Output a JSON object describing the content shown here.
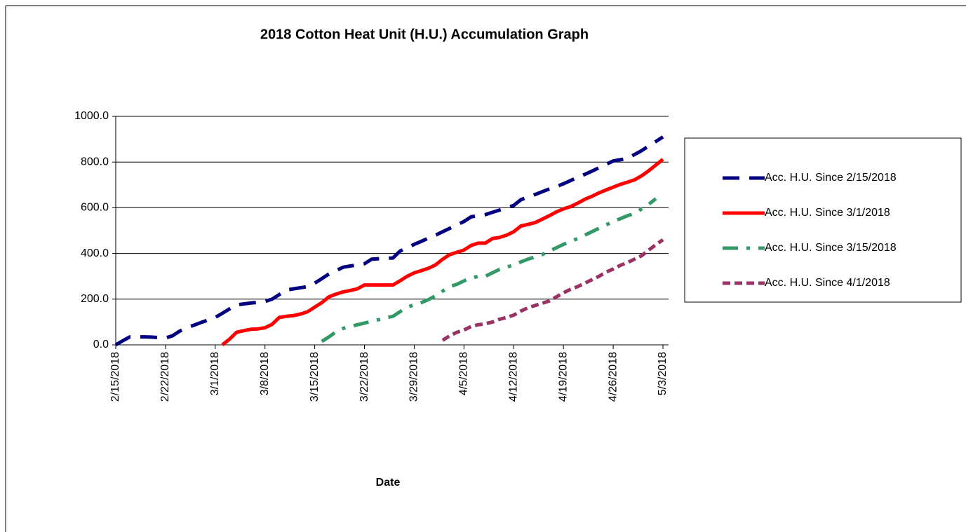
{
  "chart_data": {
    "type": "line",
    "title": "2018 Cotton Heat Unit (H.U.) Accumulation  Graph",
    "x_label": "Date",
    "categories": [
      "2/15/2018",
      null,
      null,
      null,
      null,
      null,
      null,
      "2/22/2018",
      null,
      null,
      null,
      null,
      null,
      null,
      "3/1/2018",
      null,
      null,
      null,
      null,
      null,
      null,
      "3/8/2018",
      null,
      null,
      null,
      null,
      null,
      null,
      "3/15/2018",
      null,
      null,
      null,
      null,
      null,
      null,
      "3/22/2018",
      null,
      null,
      null,
      null,
      null,
      null,
      "3/29/2018",
      null,
      null,
      null,
      null,
      null,
      null,
      "4/5/2018",
      null,
      null,
      null,
      null,
      null,
      null,
      "4/12/2018",
      null,
      null,
      null,
      null,
      null,
      null,
      "4/19/2018",
      null,
      null,
      null,
      null,
      null,
      null,
      "4/26/2018",
      null,
      null,
      null,
      null,
      null,
      null,
      "5/3/2018"
    ],
    "ylim": [
      0,
      1000
    ],
    "yticks": [
      {
        "value": 0,
        "label": "0.0"
      },
      {
        "value": 200,
        "label": "200.0"
      },
      {
        "value": 400,
        "label": "400.0"
      },
      {
        "value": 600,
        "label": "600.0"
      },
      {
        "value": 800,
        "label": "800.0"
      },
      {
        "value": 1000,
        "label": "1000.0"
      }
    ],
    "grid": true,
    "legend": "right",
    "series": [
      {
        "name": "Acc. H.U. Since 2/15/2018",
        "color": "#000080",
        "dash": "long-dash",
        "values": [
          0,
          18,
          35,
          35,
          35,
          34,
          32,
          30,
          40,
          60,
          75,
          86,
          98,
          109,
          120,
          138,
          157,
          175,
          179,
          183,
          186,
          190,
          200,
          220,
          240,
          245,
          250,
          255,
          270,
          290,
          310,
          325,
          340,
          345,
          350,
          355,
          375,
          377,
          379,
          380,
          410,
          425,
          440,
          453,
          467,
          480,
          495,
          510,
          525,
          540,
          560,
          565,
          570,
          580,
          590,
          600,
          610,
          635,
          647,
          658,
          670,
          682,
          693,
          705,
          719,
          733,
          746,
          760,
          775,
          790,
          805,
          810,
          815,
          833,
          850,
          870,
          890,
          910
        ]
      },
      {
        "name": "Acc. H.U. Since 3/1/2018",
        "color": "#ff0000",
        "dash": "solid",
        "values": [
          null,
          null,
          null,
          null,
          null,
          null,
          null,
          null,
          null,
          null,
          null,
          null,
          null,
          null,
          null,
          0,
          25,
          55,
          62,
          68,
          70,
          75,
          90,
          120,
          125,
          128,
          135,
          145,
          165,
          185,
          210,
          222,
          232,
          238,
          245,
          262,
          262,
          262,
          262,
          262,
          280,
          300,
          315,
          325,
          335,
          350,
          375,
          395,
          405,
          415,
          435,
          445,
          445,
          465,
          470,
          480,
          495,
          520,
          527,
          535,
          550,
          565,
          582,
          595,
          605,
          620,
          637,
          650,
          665,
          678,
          690,
          702,
          712,
          722,
          740,
          762,
          787,
          812
        ]
      },
      {
        "name": "Acc. H.U. Since 3/15/2018",
        "color": "#339966",
        "dash": "dash-dot",
        "values": [
          null,
          null,
          null,
          null,
          null,
          null,
          null,
          null,
          null,
          null,
          null,
          null,
          null,
          null,
          null,
          null,
          null,
          null,
          null,
          null,
          null,
          null,
          null,
          null,
          null,
          null,
          null,
          null,
          null,
          15,
          35,
          57,
          72,
          80,
          88,
          95,
          103,
          110,
          118,
          125,
          145,
          165,
          175,
          185,
          198,
          215,
          235,
          255,
          265,
          280,
          292,
          300,
          300,
          315,
          330,
          340,
          350,
          363,
          375,
          385,
          395,
          410,
          425,
          440,
          453,
          465,
          480,
          495,
          510,
          525,
          540,
          552,
          565,
          575,
          595,
          615,
          640,
          null
        ]
      },
      {
        "name": "Acc. H.U. Since 4/1/2018",
        "color": "#993366",
        "dash": "short-dash",
        "values": [
          null,
          null,
          null,
          null,
          null,
          null,
          null,
          null,
          null,
          null,
          null,
          null,
          null,
          null,
          null,
          null,
          null,
          null,
          null,
          null,
          null,
          null,
          null,
          null,
          null,
          null,
          null,
          null,
          null,
          null,
          null,
          null,
          null,
          null,
          null,
          null,
          null,
          null,
          null,
          null,
          null,
          null,
          null,
          null,
          null,
          null,
          20,
          40,
          55,
          65,
          80,
          88,
          92,
          100,
          112,
          120,
          130,
          148,
          162,
          172,
          182,
          192,
          210,
          228,
          243,
          255,
          270,
          285,
          300,
          318,
          332,
          348,
          360,
          375,
          390,
          415,
          438,
          460
        ]
      }
    ]
  }
}
